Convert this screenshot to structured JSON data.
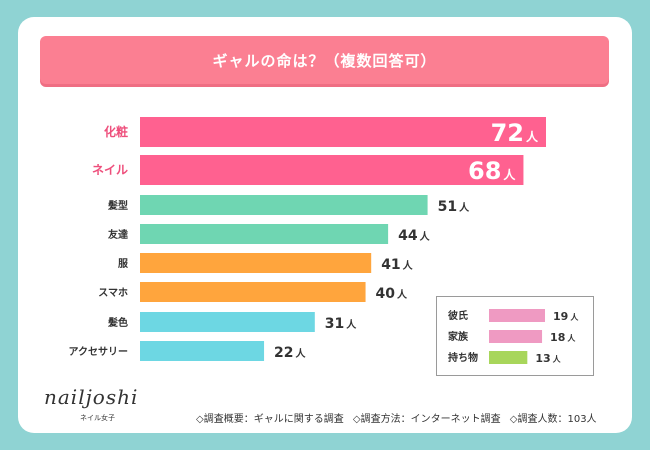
{
  "title": "ギャルの命は？（複数回答可）",
  "brand": {
    "logo": "nailjoshi",
    "sub": "ネイル女子"
  },
  "footer": {
    "overview": "◇調査概要：ギャルに関する調査",
    "method": "◇調査方法：インターネット調査",
    "count": "◇調査人数：103人"
  },
  "colors": {
    "pink": "#ff6190",
    "green": "#6fd6b2",
    "orange": "#ffa53d",
    "cyan": "#6dd7e3",
    "light_pink": "#ef9ac2",
    "lime": "#a8d65b",
    "label_highlight": "#ee4f7c",
    "background": "#8fd3d3"
  },
  "chart_data": {
    "type": "bar",
    "orientation": "horizontal",
    "unit": "人",
    "title": "ギャルの命は？（複数回答可）",
    "categories": [
      "化粧",
      "ネイル",
      "髪型",
      "友達",
      "服",
      "スマホ",
      "髪色",
      "アクセサリー"
    ],
    "values": [
      72,
      68,
      51,
      44,
      41,
      40,
      31,
      22
    ],
    "bar_colors": [
      "pink",
      "pink",
      "green",
      "green",
      "orange",
      "orange",
      "cyan",
      "cyan"
    ],
    "highlighted": [
      true,
      true,
      false,
      false,
      false,
      false,
      false,
      false
    ],
    "inset": {
      "categories": [
        "彼氏",
        "家族",
        "持ち物"
      ],
      "values": [
        19,
        18,
        13
      ],
      "bar_colors": [
        "light_pink",
        "light_pink",
        "lime"
      ]
    }
  }
}
